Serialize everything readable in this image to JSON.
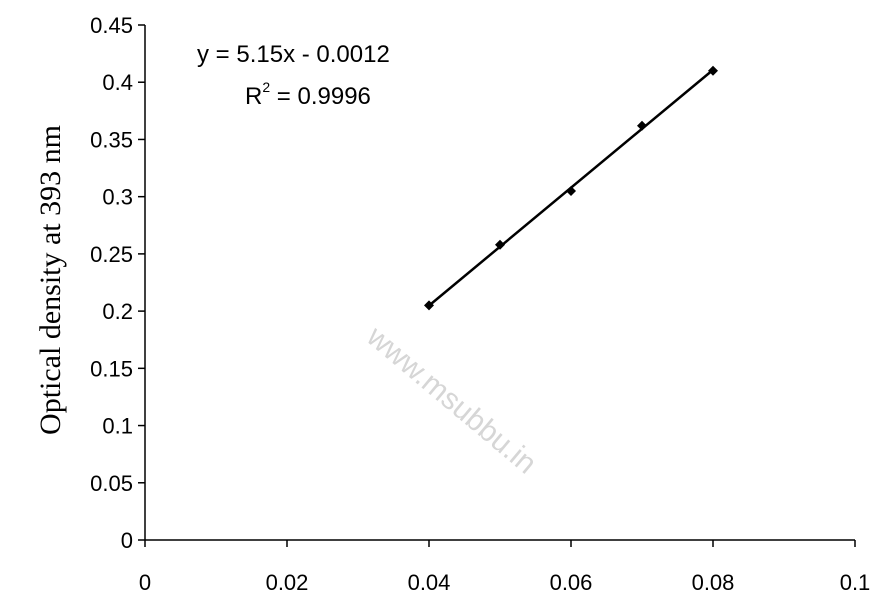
{
  "chart_data": {
    "type": "scatter",
    "ylabel": "Optical density at 393 nm",
    "xlabel": "",
    "xlim": [
      0,
      0.1
    ],
    "ylim": [
      0,
      0.45
    ],
    "x_ticks": [
      "0",
      "0.02",
      "0.04",
      "0.06",
      "0.08",
      "0.1"
    ],
    "y_ticks": [
      "0",
      "0.05",
      "0.1",
      "0.15",
      "0.2",
      "0.25",
      "0.3",
      "0.35",
      "0.4",
      "0.45"
    ],
    "series": [
      {
        "marker": "diamond",
        "color": "#000000",
        "x": [
          0.04,
          0.05,
          0.06,
          0.07,
          0.08
        ],
        "y": [
          0.205,
          0.258,
          0.305,
          0.362,
          0.41
        ]
      }
    ],
    "trendline": {
      "x": [
        0.04,
        0.08
      ],
      "y": [
        0.2048,
        0.4108
      ],
      "equation": "y = 5.15x - 0.0012",
      "r_squared_prefix": "R",
      "r_squared_exp": "2",
      "r_squared_value": " = 0.9996"
    },
    "grid": false,
    "legend": "none"
  },
  "watermark": "www.msubbu.in"
}
